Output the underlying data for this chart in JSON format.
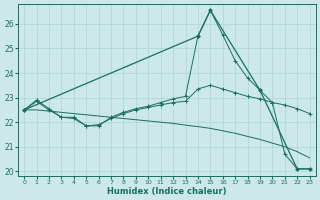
{
  "xlabel": "Humidex (Indice chaleur)",
  "background_color": "#cce8e8",
  "grid_color": "#aad4d4",
  "line_color": "#1a6e60",
  "xlim": [
    -0.5,
    23.5
  ],
  "ylim": [
    19.8,
    26.8
  ],
  "yticks": [
    20,
    21,
    22,
    23,
    24,
    25,
    26
  ],
  "xticks": [
    0,
    1,
    2,
    3,
    4,
    5,
    6,
    7,
    8,
    9,
    10,
    11,
    12,
    13,
    14,
    15,
    16,
    17,
    18,
    19,
    20,
    21,
    22,
    23
  ],
  "line_spike_x": [
    0,
    1,
    2,
    3,
    4,
    5,
    6,
    7,
    8,
    9,
    10,
    11,
    12,
    13,
    14,
    15,
    16,
    17,
    18,
    19,
    20,
    21,
    22,
    23
  ],
  "line_spike_y": [
    22.5,
    22.9,
    22.55,
    22.2,
    22.2,
    21.85,
    21.85,
    22.2,
    22.4,
    22.55,
    22.65,
    22.8,
    22.95,
    23.05,
    25.5,
    26.55,
    25.55,
    24.5,
    23.8,
    23.3,
    22.8,
    20.7,
    20.1,
    20.1
  ],
  "line_flat_x": [
    0,
    1,
    2,
    3,
    4,
    5,
    6,
    7,
    8,
    9,
    10,
    11,
    12,
    13,
    14,
    15,
    16,
    17,
    18,
    19,
    20,
    21,
    22,
    23
  ],
  "line_flat_y": [
    22.5,
    22.85,
    22.5,
    22.2,
    22.15,
    21.85,
    21.9,
    22.15,
    22.35,
    22.5,
    22.6,
    22.7,
    22.8,
    22.85,
    23.35,
    23.5,
    23.35,
    23.2,
    23.05,
    22.95,
    22.8,
    22.7,
    22.55,
    22.35
  ],
  "line_diag_x": [
    0,
    1,
    2,
    3,
    4,
    5,
    6,
    7,
    8,
    9,
    10,
    11,
    12,
    13,
    14,
    15,
    16,
    17,
    18,
    19,
    20,
    21,
    22,
    23
  ],
  "line_diag_y": [
    22.5,
    22.5,
    22.45,
    22.4,
    22.35,
    22.3,
    22.25,
    22.2,
    22.15,
    22.1,
    22.05,
    22.0,
    21.95,
    21.88,
    21.82,
    21.75,
    21.65,
    21.55,
    21.42,
    21.3,
    21.15,
    21.0,
    20.8,
    20.55
  ],
  "line_triangle_x": [
    0,
    14,
    15,
    19,
    22,
    23
  ],
  "line_triangle_y": [
    22.5,
    25.5,
    26.55,
    23.3,
    20.1,
    20.1
  ]
}
